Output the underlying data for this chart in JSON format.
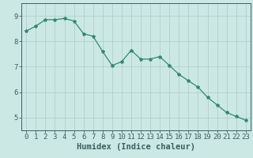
{
  "x": [
    0,
    1,
    2,
    3,
    4,
    5,
    6,
    7,
    8,
    9,
    10,
    11,
    12,
    13,
    14,
    15,
    16,
    17,
    18,
    19,
    20,
    21,
    22,
    23
  ],
  "y": [
    8.4,
    8.6,
    8.85,
    8.85,
    8.9,
    8.8,
    8.3,
    8.2,
    7.6,
    7.05,
    7.2,
    7.65,
    7.3,
    7.3,
    7.4,
    7.05,
    6.7,
    6.45,
    6.2,
    5.8,
    5.5,
    5.2,
    5.05,
    4.9
  ],
  "line_color": "#2e8b72",
  "marker": "*",
  "marker_size": 3,
  "bg_color": "#cce8e4",
  "grid_color": "#b0cfcc",
  "axis_color": "#3a6060",
  "xlabel": "Humidex (Indice chaleur)",
  "xlabel_fontsize": 7.5,
  "xlim": [
    -0.5,
    23.5
  ],
  "ylim": [
    4.5,
    9.5
  ],
  "yticks": [
    5,
    6,
    7,
    8,
    9
  ],
  "xticks": [
    0,
    1,
    2,
    3,
    4,
    5,
    6,
    7,
    8,
    9,
    10,
    11,
    12,
    13,
    14,
    15,
    16,
    17,
    18,
    19,
    20,
    21,
    22,
    23
  ],
  "tick_fontsize": 6.5
}
